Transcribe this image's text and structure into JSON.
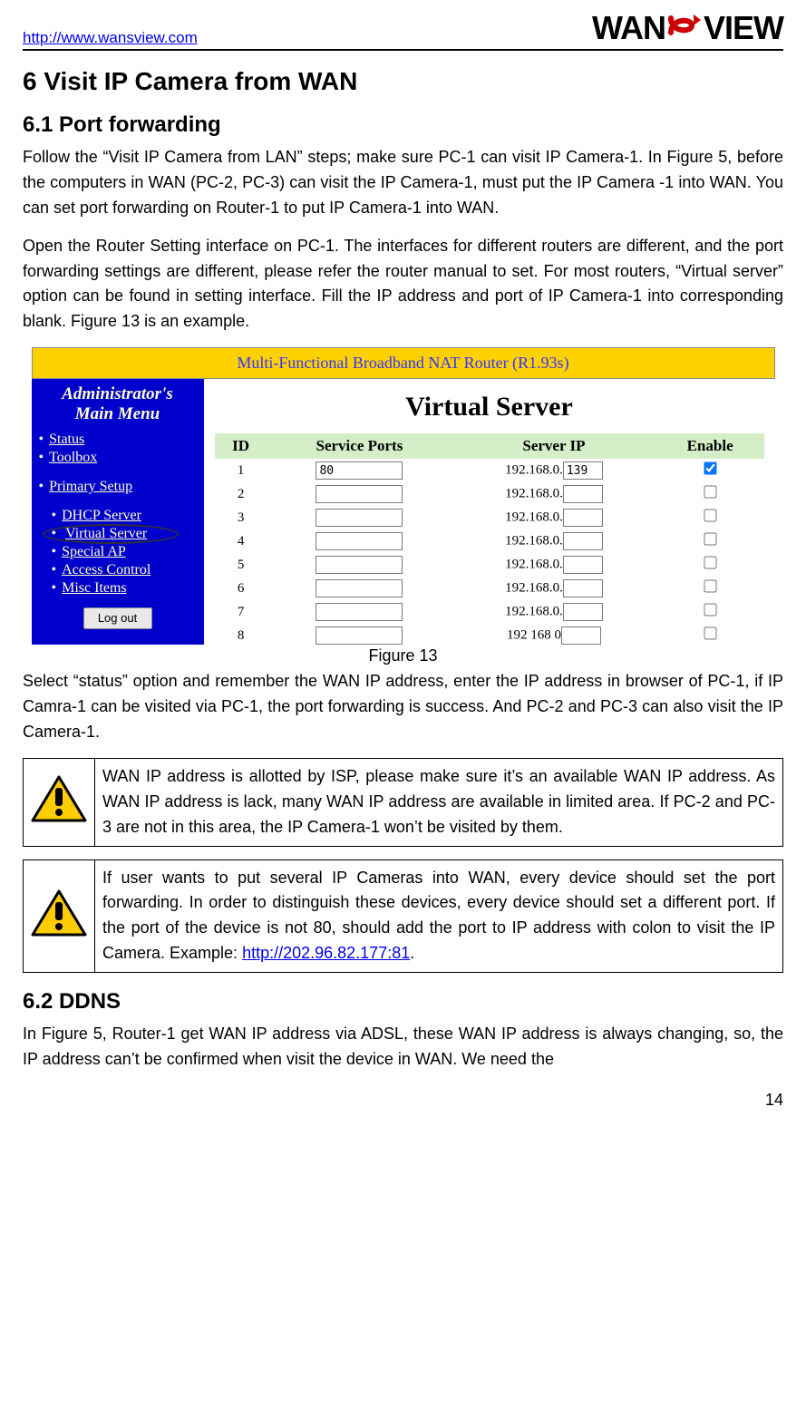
{
  "header": {
    "url": "http://www.wansview.com",
    "logo_left": "WAN",
    "logo_right": "VIEW"
  },
  "h1": "6   Visit IP Camera from WAN",
  "h2_1": "6.1  Port forwarding",
  "para1": "Follow the “Visit IP Camera from LAN” steps; make sure PC-1 can visit IP Camera-1. In Figure 5, before the computers in WAN (PC-2, PC-3) can visit the IP Camera-1,   must put the IP Camera -1 into WAN. You can set port forwarding on Router-1 to put IP Camera-1 into WAN.",
  "para2": "Open the Router Setting interface on PC-1. The interfaces for different routers are different, and the port forwarding settings are different, please refer the router manual to set. For most routers, “Virtual server” option can be found in setting interface. Fill the IP address and port of IP Camera-1 into corresponding blank. Figure 13 is an example.",
  "router": {
    "titlebar": "Multi-Functional Broadband NAT Router (R1.93s)",
    "admin_title_l1": "Administrator's",
    "admin_title_l2": "Main Menu",
    "menu": {
      "status": "Status",
      "toolbox": "Toolbox",
      "primary": "Primary Setup",
      "dhcp": "DHCP Server",
      "virtual": "Virtual Server",
      "special": "Special AP",
      "access": "Access Control",
      "misc": "Misc Items"
    },
    "logout": "Log out",
    "vs_title": "Virtual Server",
    "columns": {
      "id": "ID",
      "ports": "Service Ports",
      "ip": "Server IP",
      "enable": "Enable"
    },
    "ip_prefix": "192.168.0.",
    "rows": [
      {
        "id": "1",
        "port": "80",
        "ip_suffix": "139",
        "enabled": true
      },
      {
        "id": "2",
        "port": "",
        "ip_suffix": "",
        "enabled": false
      },
      {
        "id": "3",
        "port": "",
        "ip_suffix": "",
        "enabled": false
      },
      {
        "id": "4",
        "port": "",
        "ip_suffix": "",
        "enabled": false
      },
      {
        "id": "5",
        "port": "",
        "ip_suffix": "",
        "enabled": false
      },
      {
        "id": "6",
        "port": "",
        "ip_suffix": "",
        "enabled": false
      },
      {
        "id": "7",
        "port": "",
        "ip_suffix": "",
        "enabled": false
      },
      {
        "id": "8",
        "port": "",
        "ip_suffix": "",
        "enabled": false
      }
    ],
    "last_row_ip_prefix": "192 168 0"
  },
  "fig_caption": "Figure 13",
  "para3": "Select “status” option and remember the WAN IP address, enter the IP address in browser of PC-1, if IP Camra-1 can be visited via PC-1, the port forwarding is success. And PC-2 and PC-3 can also visit the IP Camera-1.",
  "warn1": "WAN IP address is allotted by ISP, please make sure it’s an available WAN IP address. As WAN IP address is lack, many WAN IP address are available in limited area. If PC-2 and PC-3 are not in this area, the IP Camera-1 won’t be visited by them.",
  "warn2_before": "If user wants to put several IP Cameras into WAN, every device should set the port forwarding. In order to distinguish these devices, every device should set a different port. If the port of the device is not 80, should add the port to IP address with colon to visit the IP Camera. Example: ",
  "warn2_link": "http://202.96.82.177:81",
  "warn2_after": ".",
  "h2_2": "6.2  DDNS",
  "para4": "In Figure 5, Router-1 get WAN IP address via ADSL, these WAN IP address is always changing, so, the IP address can’t be confirmed when visit the device in WAN. We need the",
  "page_number": "14"
}
